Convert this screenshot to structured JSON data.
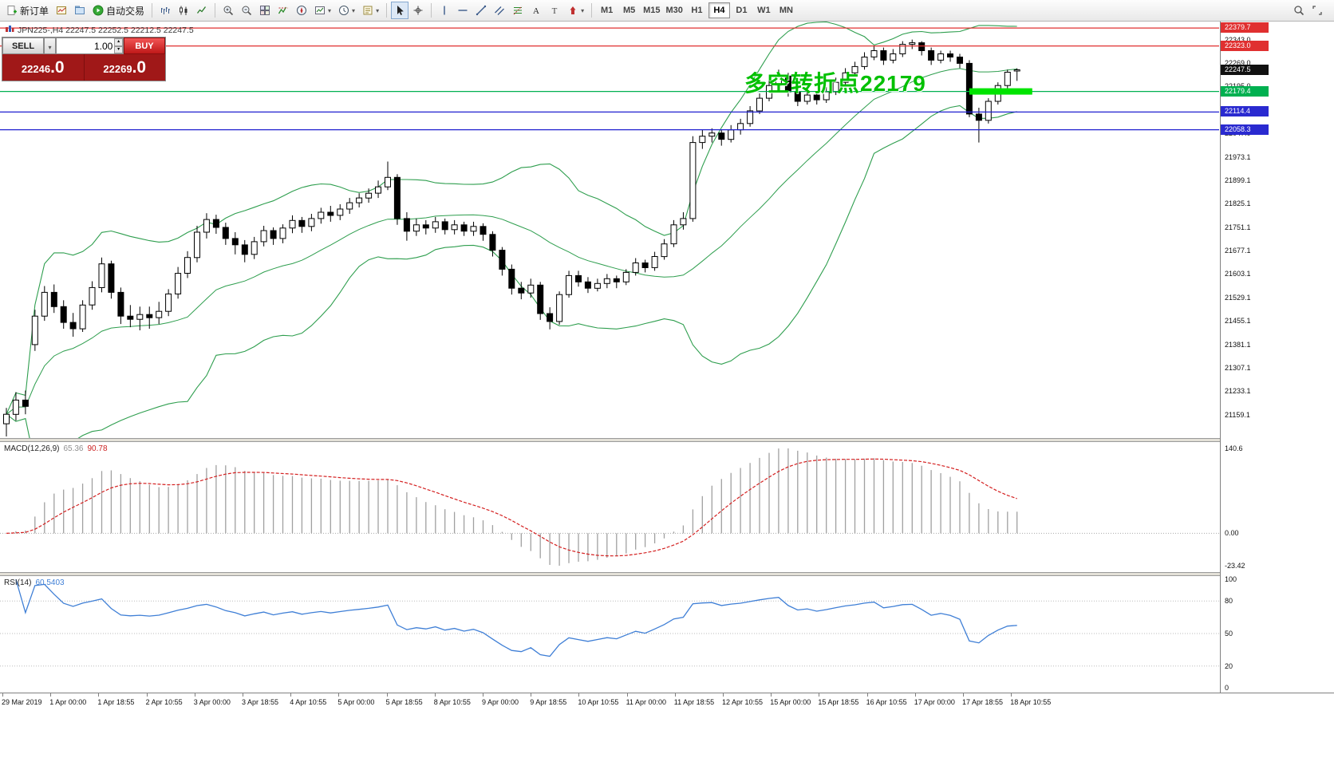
{
  "toolbar": {
    "groups": [
      {
        "items": [
          {
            "icon": "new-order",
            "label": "新订单"
          },
          {
            "icon": "charts"
          },
          {
            "icon": "profiles"
          },
          {
            "icon": "autotrading",
            "label": "自动交易"
          }
        ]
      },
      {
        "items": [
          {
            "icon": "bars-chart"
          },
          {
            "icon": "candles-chart"
          },
          {
            "icon": "line-chart"
          }
        ]
      },
      {
        "items": [
          {
            "icon": "zoom-in"
          },
          {
            "icon": "zoom-out"
          },
          {
            "icon": "tile-windows"
          },
          {
            "icon": "indicators"
          },
          {
            "icon": "navigator"
          },
          {
            "icon": "new-chart",
            "dropdown": true
          },
          {
            "icon": "period",
            "dropdown": true
          },
          {
            "icon": "templates",
            "dropdown": true
          }
        ]
      },
      {
        "items": [
          {
            "icon": "cursor",
            "active": true
          },
          {
            "icon": "crosshair"
          }
        ]
      },
      {
        "items": [
          {
            "icon": "vline"
          },
          {
            "icon": "hline"
          },
          {
            "icon": "trendline"
          },
          {
            "icon": "channel"
          },
          {
            "icon": "fibonacci"
          },
          {
            "icon": "text"
          },
          {
            "icon": "text-label"
          },
          {
            "icon": "arrows",
            "dropdown": true
          }
        ]
      }
    ],
    "timeframes": [
      "M1",
      "M5",
      "M15",
      "M30",
      "H1",
      "H4",
      "D1",
      "W1",
      "MN"
    ],
    "active_timeframe": "H4",
    "right_icons": [
      "search",
      "expand"
    ]
  },
  "glyphs": {
    "chevron_down": "▾",
    "chevron_up": "▴"
  },
  "chart": {
    "title": "JPN225-,H4  22247.5 22252.5 22212.5 22247.5",
    "symbol": "JPN225-",
    "period": "H4",
    "open": "22247.5",
    "high": "22252.5",
    "low": "22212.5",
    "close": "22247.5"
  },
  "trade_panel": {
    "sell_label": "SELL",
    "buy_label": "BUY",
    "volume": "1.00",
    "sell_price_main": "22246",
    "sell_price_fraction": ".0",
    "buy_price_main": "22269",
    "buy_price_fraction": ".0"
  },
  "annotation": {
    "text": "多空转折点22179",
    "color": "#00c000"
  },
  "price_axis": {
    "ticks": [
      "22343.0",
      "22269.0",
      "22195.0",
      "22121.0",
      "22047.0",
      "21973.1",
      "21899.1",
      "21825.1",
      "21751.1",
      "21677.1",
      "21603.1",
      "21529.1",
      "21455.1",
      "21381.1",
      "21307.1",
      "21233.1",
      "21159.1"
    ],
    "tags": [
      {
        "text": "22379.7",
        "price": 22379.7,
        "color": "#e03030"
      },
      {
        "text": "22323.0",
        "price": 22323.0,
        "color": "#e03030"
      },
      {
        "text": "22247.5",
        "price": 22247.5,
        "color": "#111111"
      },
      {
        "text": "22179.4",
        "price": 22179.4,
        "color": "#00b050"
      },
      {
        "text": "22114.4",
        "price": 22114.4,
        "color": "#2a2ad0"
      },
      {
        "text": "22058.3",
        "price": 22058.3,
        "color": "#2a2ad0"
      }
    ]
  },
  "chart_data": {
    "type": "candlestick",
    "symbol": "JPN225-",
    "timeframe": "H4",
    "price_range": [
      21085,
      22400
    ],
    "bollinger": {
      "period": 20,
      "deviation": 2
    },
    "hlines": [
      {
        "price": 22379.7,
        "color": "#e03030"
      },
      {
        "price": 22323.0,
        "color": "#e03030"
      },
      {
        "price": 22179.4,
        "color": "#00b050",
        "highlight_from_bar": 101,
        "highlight_to_bar": 107.6
      },
      {
        "price": 22114.4,
        "color": "#2020d0"
      },
      {
        "price": 22058.3,
        "color": "#2020d0"
      }
    ],
    "ohlc": [
      [
        21130,
        21180,
        21090,
        21160
      ],
      [
        21160,
        21230,
        21140,
        21205
      ],
      [
        21205,
        21235,
        21160,
        21185
      ],
      [
        21380,
        21490,
        21360,
        21470
      ],
      [
        21470,
        21565,
        21455,
        21545
      ],
      [
        21545,
        21570,
        21480,
        21500
      ],
      [
        21500,
        21520,
        21430,
        21450
      ],
      [
        21450,
        21480,
        21405,
        21430
      ],
      [
        21430,
        21520,
        21420,
        21505
      ],
      [
        21505,
        21580,
        21490,
        21560
      ],
      [
        21560,
        21655,
        21545,
        21635
      ],
      [
        21635,
        21645,
        21525,
        21545
      ],
      [
        21545,
        21560,
        21445,
        21470
      ],
      [
        21470,
        21505,
        21435,
        21460
      ],
      [
        21460,
        21500,
        21425,
        21475
      ],
      [
        21475,
        21500,
        21430,
        21465
      ],
      [
        21465,
        21515,
        21445,
        21485
      ],
      [
        21485,
        21555,
        21470,
        21540
      ],
      [
        21540,
        21625,
        21525,
        21605
      ],
      [
        21605,
        21675,
        21590,
        21655
      ],
      [
        21655,
        21755,
        21640,
        21735
      ],
      [
        21735,
        21795,
        21715,
        21775
      ],
      [
        21775,
        21790,
        21730,
        21750
      ],
      [
        21750,
        21765,
        21695,
        21715
      ],
      [
        21715,
        21735,
        21665,
        21695
      ],
      [
        21695,
        21710,
        21640,
        21665
      ],
      [
        21665,
        21720,
        21650,
        21705
      ],
      [
        21705,
        21755,
        21690,
        21740
      ],
      [
        21740,
        21750,
        21695,
        21715
      ],
      [
        21715,
        21760,
        21700,
        21748
      ],
      [
        21748,
        21788,
        21732,
        21772
      ],
      [
        21772,
        21783,
        21733,
        21753
      ],
      [
        21753,
        21793,
        21738,
        21778
      ],
      [
        21778,
        21812,
        21762,
        21798
      ],
      [
        21798,
        21818,
        21768,
        21788
      ],
      [
        21788,
        21823,
        21773,
        21808
      ],
      [
        21808,
        21843,
        21793,
        21828
      ],
      [
        21828,
        21858,
        21813,
        21843
      ],
      [
        21843,
        21873,
        21828,
        21858
      ],
      [
        21858,
        21898,
        21843,
        21878
      ],
      [
        21878,
        21958,
        21868,
        21908
      ],
      [
        21908,
        21918,
        21758,
        21778
      ],
      [
        21778,
        21798,
        21708,
        21738
      ],
      [
        21738,
        21778,
        21723,
        21758
      ],
      [
        21758,
        21773,
        21728,
        21748
      ],
      [
        21748,
        21783,
        21733,
        21768
      ],
      [
        21768,
        21778,
        21728,
        21743
      ],
      [
        21743,
        21773,
        21728,
        21758
      ],
      [
        21758,
        21768,
        21723,
        21738
      ],
      [
        21738,
        21768,
        21723,
        21753
      ],
      [
        21753,
        21763,
        21708,
        21728
      ],
      [
        21728,
        21738,
        21658,
        21678
      ],
      [
        21678,
        21688,
        21598,
        21618
      ],
      [
        21618,
        21633,
        21538,
        21558
      ],
      [
        21558,
        21578,
        21523,
        21543
      ],
      [
        21543,
        21588,
        21528,
        21568
      ],
      [
        21568,
        21578,
        21458,
        21478
      ],
      [
        21478,
        21498,
        21428,
        21453
      ],
      [
        21453,
        21548,
        21443,
        21538
      ],
      [
        21538,
        21613,
        21528,
        21598
      ],
      [
        21598,
        21613,
        21563,
        21578
      ],
      [
        21578,
        21593,
        21543,
        21558
      ],
      [
        21558,
        21588,
        21548,
        21573
      ],
      [
        21573,
        21603,
        21558,
        21588
      ],
      [
        21588,
        21598,
        21558,
        21578
      ],
      [
        21578,
        21618,
        21568,
        21608
      ],
      [
        21608,
        21653,
        21598,
        21638
      ],
      [
        21638,
        21648,
        21608,
        21623
      ],
      [
        21623,
        21673,
        21613,
        21658
      ],
      [
        21658,
        21713,
        21648,
        21698
      ],
      [
        21698,
        21773,
        21688,
        21758
      ],
      [
        21758,
        21798,
        21743,
        21778
      ],
      [
        21778,
        22038,
        21768,
        22018
      ],
      [
        22018,
        22058,
        21998,
        22038
      ],
      [
        22038,
        22063,
        22018,
        22048
      ],
      [
        22048,
        22058,
        22008,
        22028
      ],
      [
        22028,
        22073,
        22018,
        22058
      ],
      [
        22058,
        22093,
        22043,
        22078
      ],
      [
        22078,
        22133,
        22068,
        22118
      ],
      [
        22118,
        22173,
        22108,
        22158
      ],
      [
        22158,
        22213,
        22148,
        22198
      ],
      [
        22198,
        22248,
        22188,
        22228
      ],
      [
        22228,
        22238,
        22163,
        22178
      ],
      [
        22178,
        22193,
        22133,
        22148
      ],
      [
        22148,
        22183,
        22138,
        22168
      ],
      [
        22168,
        22178,
        22138,
        22153
      ],
      [
        22153,
        22193,
        22143,
        22178
      ],
      [
        22178,
        22223,
        22168,
        22208
      ],
      [
        22208,
        22253,
        22198,
        22238
      ],
      [
        22238,
        22273,
        22228,
        22258
      ],
      [
        22258,
        22303,
        22248,
        22288
      ],
      [
        22288,
        22323,
        22278,
        22308
      ],
      [
        22308,
        22318,
        22263,
        22278
      ],
      [
        22278,
        22313,
        22268,
        22298
      ],
      [
        22298,
        22338,
        22288,
        22328
      ],
      [
        22328,
        22343,
        22313,
        22333
      ],
      [
        22333,
        22338,
        22293,
        22308
      ],
      [
        22308,
        22318,
        22263,
        22278
      ],
      [
        22278,
        22308,
        22268,
        22298
      ],
      [
        22298,
        22308,
        22273,
        22288
      ],
      [
        22288,
        22298,
        22253,
        22268
      ],
      [
        22268,
        22278,
        22098,
        22108
      ],
      [
        22108,
        22128,
        22018,
        22088
      ],
      [
        22088,
        22158,
        22078,
        22148
      ],
      [
        22148,
        22208,
        22138,
        22198
      ],
      [
        22198,
        22248,
        22188,
        22240
      ],
      [
        22247.5,
        22252.5,
        22212.5,
        22247.5
      ]
    ],
    "macd": {
      "label": "MACD(12,26,9)",
      "value_main": "65.36",
      "value_signal": "90.78",
      "fast": 12,
      "slow": 26,
      "signal": 9,
      "axis_max": "140.6",
      "axis_zero": "0.00",
      "axis_min": "-23.42"
    },
    "rsi": {
      "label": "RSI(14)",
      "value": "60.5403",
      "period": 14,
      "levels": [
        80,
        50,
        20
      ],
      "axis": [
        "100",
        "80",
        "50",
        "20",
        "0"
      ]
    },
    "time_labels": [
      "29 Mar 2019",
      "1 Apr 00:00",
      "1 Apr 18:55",
      "2 Apr 10:55",
      "3 Apr 00:00",
      "3 Apr 18:55",
      "4 Apr 10:55",
      "5 Apr 00:00",
      "5 Apr 18:55",
      "8 Apr 10:55",
      "9 Apr 00:00",
      "9 Apr 18:55",
      "10 Apr 10:55",
      "11 Apr 00:00",
      "11 Apr 18:55",
      "12 Apr 10:55",
      "15 Apr 00:00",
      "15 Apr 18:55",
      "16 Apr 10:55",
      "17 Apr 00:00",
      "17 Apr 18:55",
      "18 Apr 10:55"
    ]
  }
}
